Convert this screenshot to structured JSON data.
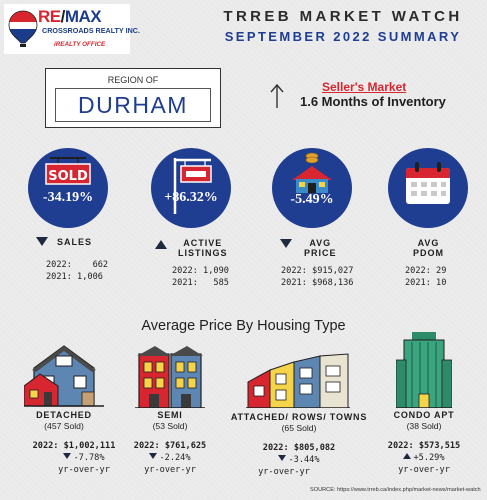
{
  "logo": {
    "brand_re": "RE",
    "brand_slash": "/",
    "brand_max": "MAX",
    "sub": "CROSSROADS REALTY INC.",
    "office": "iREALTY OFFICE"
  },
  "header": {
    "title": "TRREB MARKET WATCH",
    "subtitle": "SEPTEMBER 2022 SUMMARY"
  },
  "region": {
    "label": "REGION OF",
    "name": "DURHAM"
  },
  "market": {
    "type": "Seller's Market",
    "inventory": "1.6 Months of Inventory"
  },
  "stats": [
    {
      "icon": "sold-sign-icon",
      "change": "-34.19%",
      "direction": "down",
      "label_1": "SALES",
      "label_2": "",
      "line_2022": "2022:    662",
      "line_2021": "2021: 1,006"
    },
    {
      "icon": "listing-sign-icon",
      "change": "+86.32%",
      "direction": "up",
      "label_1": "ACTIVE",
      "label_2": "LISTINGS",
      "line_2022": "2022: 1,090",
      "line_2021": "2021:   585"
    },
    {
      "icon": "house-price-icon",
      "change": "-5.49%",
      "direction": "down",
      "label_1": "AVG",
      "label_2": "PRICE",
      "line_2022": "2022: $915,027",
      "line_2021": "2021: $968,136"
    },
    {
      "icon": "calendar-icon",
      "change": "",
      "direction": "none",
      "label_1": "AVG",
      "label_2": "PDOM",
      "line_2022": "2022: 29",
      "line_2021": "2021: 10"
    }
  ],
  "housing": {
    "title": "Average Price By Housing Type",
    "types": [
      {
        "icon": "detached-house-icon",
        "label": "DETACHED",
        "sold": "(457 Sold)",
        "price": "2022: $1,002,111",
        "change": "-7.78%",
        "direction": "down",
        "yoy": "yr-over-yr"
      },
      {
        "icon": "semi-house-icon",
        "label": "SEMI",
        "sold": "(53 Sold)",
        "price": "2022: $761,625",
        "change": "-2.24%",
        "direction": "down",
        "yoy": "yr-over-yr"
      },
      {
        "icon": "townhouse-icon",
        "label": "ATTACHED/ ROWS/ TOWNS",
        "sold": "(65 Sold)",
        "price": "2022: $805,082",
        "change": "-3.44%",
        "direction": "down",
        "yoy": "yr-over-yr"
      },
      {
        "icon": "condo-building-icon",
        "label": "CONDO APT",
        "sold": "(38 Sold)",
        "price": "2022: $573,515",
        "change": "+5.29%",
        "direction": "up",
        "yoy": "yr-over-yr"
      }
    ]
  },
  "source": "SOURCE:  https://www.trreb.ca/index.php/market-news/market-watch",
  "colors": {
    "navy": "#1f3d91",
    "red": "#d7262f",
    "background": "#ececec"
  }
}
